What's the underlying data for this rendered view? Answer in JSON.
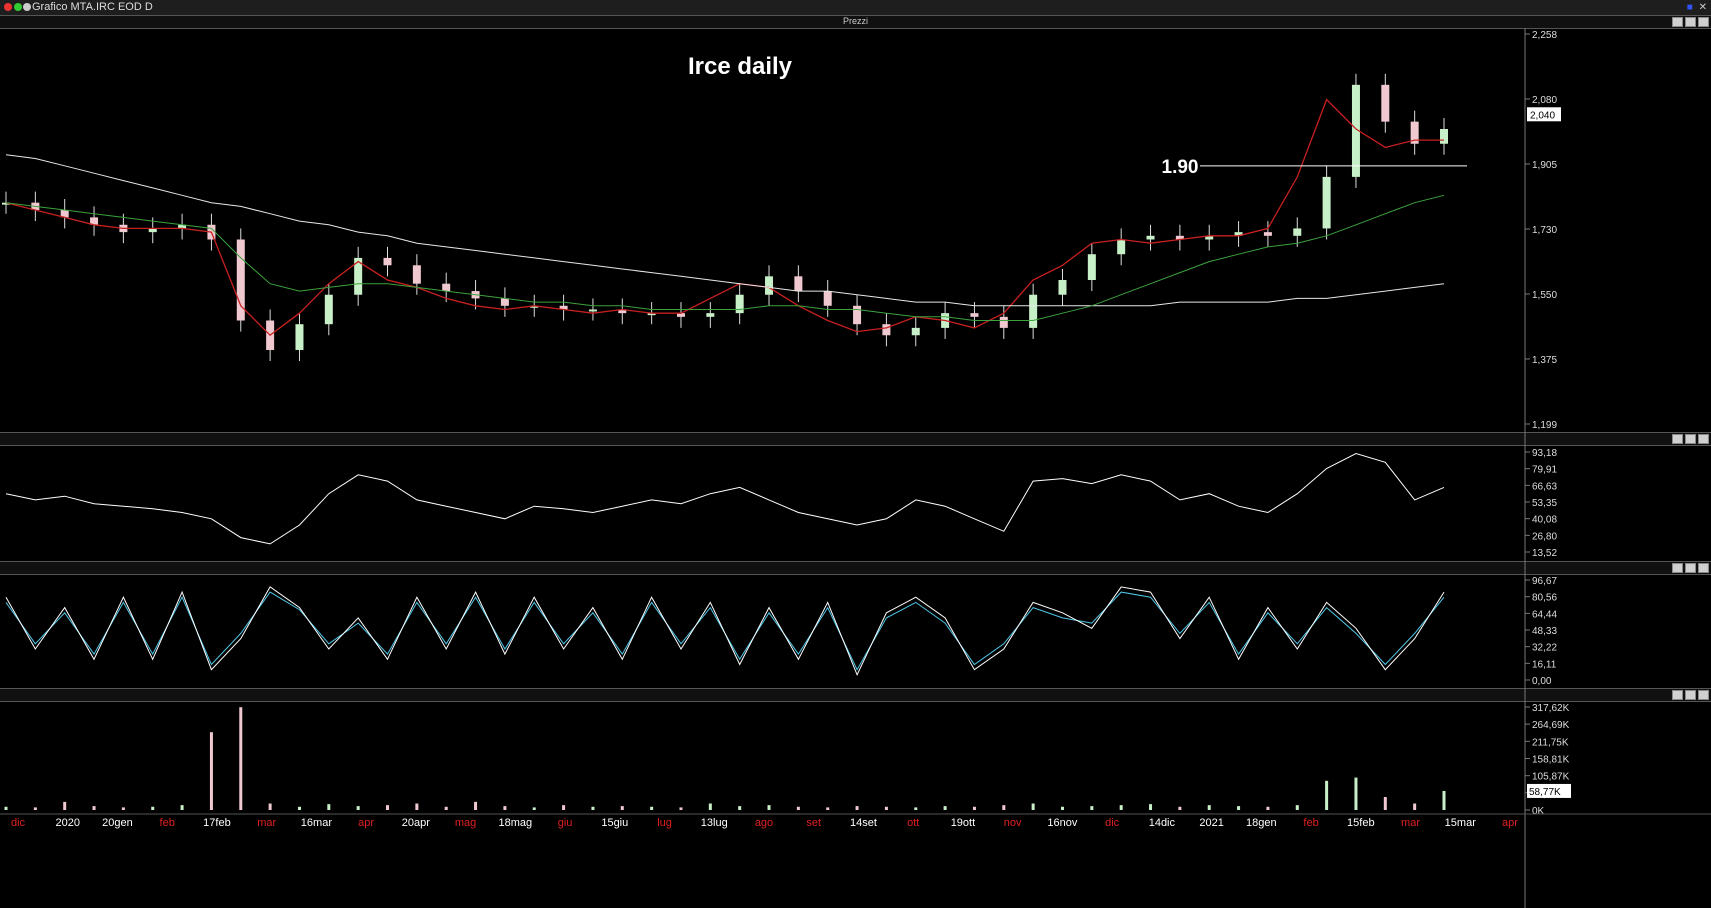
{
  "window": {
    "title": "Grafico MTA.IRC EOD D"
  },
  "panes": {
    "price": {
      "header": "Prezzi",
      "title": "Irce daily",
      "level_label": "1.90",
      "y_ticks": [
        "2,258",
        "2,080",
        "1,905",
        "1,730",
        "1,550",
        "1,375",
        "1,199"
      ],
      "last_value": "2,040",
      "level_value": 1.9
    },
    "rsi": {
      "y_ticks": [
        "93,18",
        "79,91",
        "66,63",
        "53,35",
        "40,08",
        "26,80",
        "13,52"
      ]
    },
    "stoch": {
      "y_ticks": [
        "96,67",
        "80,56",
        "64,44",
        "48,33",
        "32,22",
        "16,11",
        "0,00"
      ]
    },
    "volume": {
      "y_ticks": [
        "317,62K",
        "264,69K",
        "211,75K",
        "158,81K",
        "105,87K",
        "58,77K",
        "0K"
      ],
      "last_value": "58,77K"
    }
  },
  "x_axis": {
    "labels": [
      {
        "text": "dic",
        "red": true
      },
      {
        "text": "2020",
        "red": false
      },
      {
        "text": "20gen",
        "red": false
      },
      {
        "text": "feb",
        "red": true
      },
      {
        "text": "17feb",
        "red": false
      },
      {
        "text": "mar",
        "red": true
      },
      {
        "text": "16mar",
        "red": false
      },
      {
        "text": "apr",
        "red": true
      },
      {
        "text": "20apr",
        "red": false
      },
      {
        "text": "mag",
        "red": true
      },
      {
        "text": "18mag",
        "red": false
      },
      {
        "text": "giu",
        "red": true
      },
      {
        "text": "15giu",
        "red": false
      },
      {
        "text": "lug",
        "red": true
      },
      {
        "text": "13lug",
        "red": false
      },
      {
        "text": "ago",
        "red": true
      },
      {
        "text": "set",
        "red": true
      },
      {
        "text": "14set",
        "red": false
      },
      {
        "text": "ott",
        "red": true
      },
      {
        "text": "19ott",
        "red": false
      },
      {
        "text": "nov",
        "red": true
      },
      {
        "text": "16nov",
        "red": false
      },
      {
        "text": "dic",
        "red": true
      },
      {
        "text": "14dic",
        "red": false
      },
      {
        "text": "2021",
        "red": false
      },
      {
        "text": "18gen",
        "red": false
      },
      {
        "text": "feb",
        "red": true
      },
      {
        "text": "15feb",
        "red": false
      },
      {
        "text": "mar",
        "red": true
      },
      {
        "text": "15mar",
        "red": false
      },
      {
        "text": "apr",
        "red": true
      }
    ]
  },
  "chart_data": [
    {
      "type": "candlestick",
      "title": "Irce daily",
      "ylim": [
        1.199,
        2.258
      ],
      "annotations": [
        {
          "text": "1.90",
          "y": 1.9
        }
      ],
      "series": [
        {
          "values": [
            1.8,
            1.78,
            1.76,
            1.74,
            1.72,
            1.73,
            1.74,
            1.7,
            1.48,
            1.4,
            1.47,
            1.55,
            1.65,
            1.63,
            1.58,
            1.56,
            1.54,
            1.52,
            1.52,
            1.51,
            1.51,
            1.5,
            1.5,
            1.49,
            1.5,
            1.55,
            1.6,
            1.56,
            1.52,
            1.47,
            1.44,
            1.46,
            1.5,
            1.49,
            1.46,
            1.55,
            1.59,
            1.66,
            1.7,
            1.71,
            1.7,
            1.71,
            1.72,
            1.71,
            1.73,
            1.87,
            2.12,
            2.02,
            1.96,
            2.0
          ]
        },
        {
          "values": [
            1.8,
            1.79,
            1.78,
            1.77,
            1.76,
            1.75,
            1.74,
            1.73,
            1.65,
            1.58,
            1.56,
            1.57,
            1.58,
            1.58,
            1.57,
            1.56,
            1.55,
            1.54,
            1.53,
            1.53,
            1.52,
            1.52,
            1.51,
            1.51,
            1.51,
            1.51,
            1.52,
            1.52,
            1.51,
            1.51,
            1.5,
            1.49,
            1.49,
            1.48,
            1.48,
            1.48,
            1.5,
            1.52,
            1.55,
            1.58,
            1.61,
            1.64,
            1.66,
            1.68,
            1.69,
            1.71,
            1.74,
            1.77,
            1.8,
            1.82
          ]
        },
        {
          "values": [
            1.93,
            1.92,
            1.9,
            1.88,
            1.86,
            1.84,
            1.82,
            1.8,
            1.79,
            1.77,
            1.75,
            1.74,
            1.72,
            1.71,
            1.69,
            1.68,
            1.67,
            1.66,
            1.65,
            1.64,
            1.63,
            1.62,
            1.61,
            1.6,
            1.59,
            1.58,
            1.57,
            1.56,
            1.56,
            1.55,
            1.54,
            1.53,
            1.53,
            1.52,
            1.52,
            1.52,
            1.52,
            1.52,
            1.52,
            1.52,
            1.53,
            1.53,
            1.53,
            1.53,
            1.54,
            1.54,
            1.55,
            1.56,
            1.57,
            1.58
          ]
        },
        {
          "values": [
            1.8,
            1.78,
            1.76,
            1.74,
            1.73,
            1.73,
            1.73,
            1.72,
            1.52,
            1.44,
            1.5,
            1.58,
            1.64,
            1.59,
            1.57,
            1.54,
            1.52,
            1.51,
            1.52,
            1.51,
            1.5,
            1.51,
            1.5,
            1.5,
            1.54,
            1.58,
            1.57,
            1.52,
            1.48,
            1.45,
            1.46,
            1.49,
            1.48,
            1.46,
            1.5,
            1.59,
            1.63,
            1.69,
            1.7,
            1.69,
            1.7,
            1.71,
            1.71,
            1.73,
            1.87,
            2.08,
            2.0,
            1.95,
            1.97,
            1.97
          ]
        }
      ]
    },
    {
      "type": "line",
      "ylim": [
        13.52,
        93.18
      ],
      "series": [
        {
          "values": [
            60,
            55,
            58,
            52,
            50,
            48,
            45,
            40,
            25,
            20,
            35,
            60,
            75,
            70,
            55,
            50,
            45,
            40,
            50,
            48,
            45,
            50,
            55,
            52,
            60,
            65,
            55,
            45,
            40,
            35,
            40,
            55,
            50,
            40,
            30,
            70,
            72,
            68,
            75,
            70,
            55,
            60,
            50,
            45,
            60,
            80,
            92,
            85,
            55,
            65
          ]
        }
      ]
    },
    {
      "type": "line",
      "ylim": [
        0,
        96.67
      ],
      "series": [
        {
          "values": [
            80,
            30,
            70,
            20,
            80,
            20,
            85,
            10,
            40,
            90,
            70,
            30,
            60,
            20,
            80,
            30,
            85,
            25,
            80,
            30,
            70,
            20,
            80,
            30,
            75,
            15,
            70,
            20,
            75,
            5,
            65,
            80,
            60,
            10,
            30,
            75,
            65,
            50,
            90,
            85,
            40,
            80,
            20,
            70,
            30,
            75,
            50,
            10,
            40,
            85
          ]
        },
        {
          "values": [
            75,
            35,
            65,
            25,
            75,
            25,
            80,
            15,
            45,
            85,
            68,
            35,
            55,
            25,
            75,
            35,
            80,
            30,
            75,
            35,
            65,
            25,
            75,
            35,
            70,
            20,
            65,
            25,
            70,
            10,
            60,
            75,
            55,
            15,
            35,
            70,
            60,
            55,
            85,
            80,
            45,
            75,
            25,
            65,
            35,
            70,
            45,
            15,
            45,
            80
          ]
        }
      ]
    },
    {
      "type": "bar",
      "ylim": [
        0,
        317.62
      ],
      "series": [
        {
          "values": [
            10,
            8,
            25,
            12,
            8,
            10,
            15,
            240,
            317,
            20,
            10,
            18,
            12,
            15,
            20,
            10,
            25,
            12,
            8,
            15,
            10,
            12,
            10,
            8,
            20,
            12,
            15,
            10,
            8,
            12,
            10,
            8,
            12,
            10,
            15,
            20,
            10,
            12,
            15,
            18,
            10,
            15,
            12,
            10,
            15,
            90,
            100,
            40,
            20,
            58.77
          ]
        }
      ]
    }
  ],
  "colors": {
    "ma_short": "#3ca33c",
    "ma_mid": "#e8e8e8",
    "ma_long": "#c82020",
    "stoch_k": "#ffffff",
    "stoch_d": "#4fc8e8",
    "candle_up": "#c8f0c8",
    "candle_down": "#f0c8d0"
  }
}
